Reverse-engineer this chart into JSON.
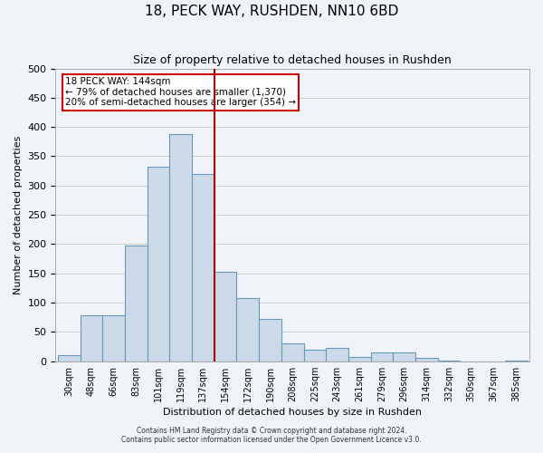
{
  "title": "18, PECK WAY, RUSHDEN, NN10 6BD",
  "subtitle": "Size of property relative to detached houses in Rushden",
  "xlabel": "Distribution of detached houses by size in Rushden",
  "ylabel": "Number of detached properties",
  "bar_labels": [
    "30sqm",
    "48sqm",
    "66sqm",
    "83sqm",
    "101sqm",
    "119sqm",
    "137sqm",
    "154sqm",
    "172sqm",
    "190sqm",
    "208sqm",
    "225sqm",
    "243sqm",
    "261sqm",
    "279sqm",
    "296sqm",
    "314sqm",
    "332sqm",
    "350sqm",
    "367sqm",
    "385sqm"
  ],
  "bar_values": [
    10,
    78,
    78,
    198,
    332,
    388,
    320,
    152,
    108,
    73,
    30,
    20,
    22,
    8,
    15,
    15,
    5,
    1,
    0,
    0,
    1
  ],
  "bar_color": "#ccd9e8",
  "bar_edge_color": "#6699bb",
  "vline_x": 7,
  "vline_color": "#aa0000",
  "annotation_title": "18 PECK WAY: 144sqm",
  "annotation_line1": "← 79% of detached houses are smaller (1,370)",
  "annotation_line2": "20% of semi-detached houses are larger (354) →",
  "annotation_box_color": "#ffffff",
  "annotation_box_edge": "#cc0000",
  "ylim": [
    0,
    500
  ],
  "yticks": [
    0,
    50,
    100,
    150,
    200,
    250,
    300,
    350,
    400,
    450,
    500
  ],
  "footer1": "Contains HM Land Registry data © Crown copyright and database right 2024.",
  "footer2": "Contains public sector information licensed under the Open Government Licence v3.0.",
  "bg_color": "#f0f4f8"
}
